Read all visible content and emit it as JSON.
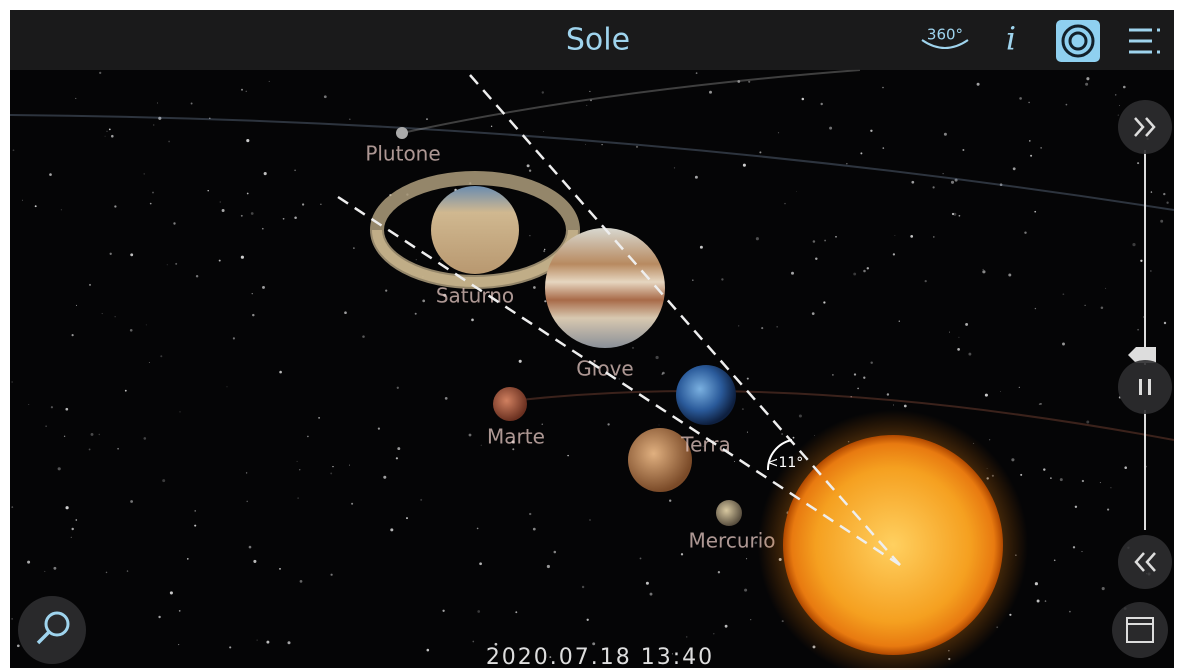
{
  "header": {
    "title": "Sole",
    "view_360": "360°",
    "info": "i"
  },
  "planets": [
    {
      "label": "Plutone"
    },
    {
      "label": "Saturno"
    },
    {
      "label": "Giove"
    },
    {
      "label": "Terra"
    },
    {
      "label": "Marte"
    },
    {
      "label": "Mercurio"
    }
  ],
  "angle_label": "<11°",
  "datetime": "2020.07.18 13:40"
}
